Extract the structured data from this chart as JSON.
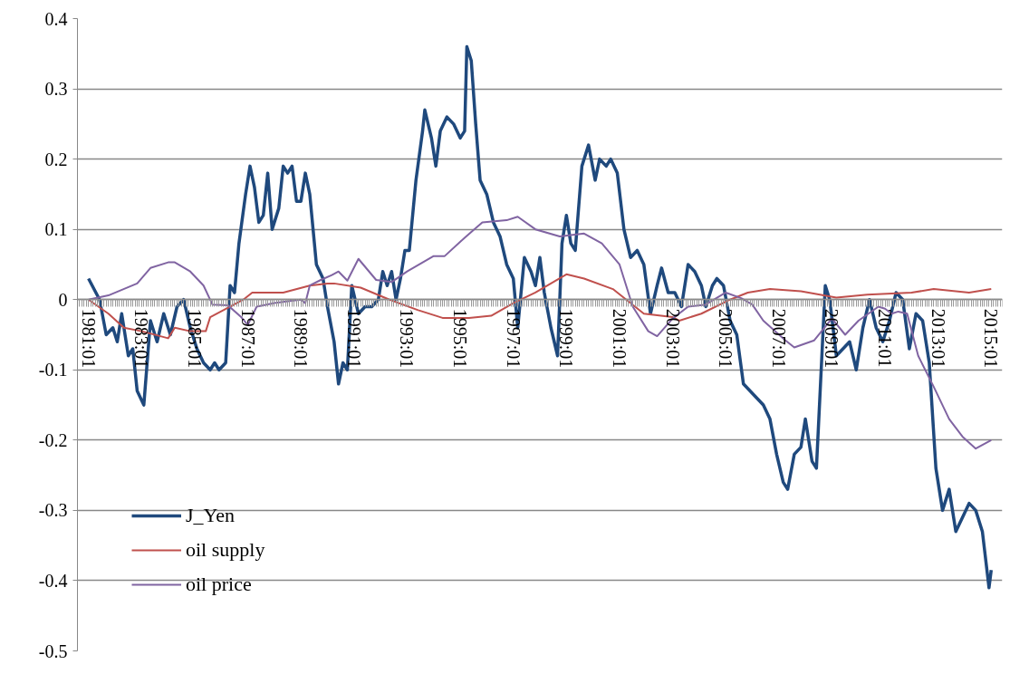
{
  "chart_data": {
    "type": "line",
    "ylim": [
      -0.5,
      0.4
    ],
    "yticks": [
      -0.5,
      -0.4,
      -0.3,
      -0.2,
      -0.1,
      0,
      0.1,
      0.2,
      0.3,
      0.4
    ],
    "xlim": [
      "1980-08",
      "2015-06"
    ],
    "xticks": [
      {
        "value": "1981-01",
        "label": "1981:01"
      },
      {
        "value": "1983-01",
        "label": "1983:01"
      },
      {
        "value": "1985-01",
        "label": "1985:01"
      },
      {
        "value": "1987-01",
        "label": "1987:01"
      },
      {
        "value": "1989-01",
        "label": "1989:01"
      },
      {
        "value": "1991-01",
        "label": "1991:01"
      },
      {
        "value": "1993-01",
        "label": "1993:01"
      },
      {
        "value": "1995-01",
        "label": "1995:01"
      },
      {
        "value": "1997-01",
        "label": "1997:01"
      },
      {
        "value": "1999-01",
        "label": "1999:01"
      },
      {
        "value": "2001-01",
        "label": "2001:01"
      },
      {
        "value": "2003-01",
        "label": "2003:01"
      },
      {
        "value": "2005-01",
        "label": "2005:01"
      },
      {
        "value": "2007-01",
        "label": "2007:01"
      },
      {
        "value": "2009-01",
        "label": "2009:01"
      },
      {
        "value": "2011-01",
        "label": "2011:01"
      },
      {
        "value": "2013-01",
        "label": "2013:01"
      },
      {
        "value": "2015-01",
        "label": "2015:01"
      }
    ],
    "grid": "y",
    "legend": "bottom left",
    "marker": "none",
    "line_style": "solid",
    "series": [
      {
        "name": "J_Yen",
        "color": "#1f497d",
        "x": [
          "1981-01",
          "1981-06",
          "1981-09",
          "1981-12",
          "1982-02",
          "1982-04",
          "1982-07",
          "1982-09",
          "1982-11",
          "1983-02",
          "1983-05",
          "1983-08",
          "1983-11",
          "1984-02",
          "1984-05",
          "1984-08",
          "1984-11",
          "1985-02",
          "1985-05",
          "1985-08",
          "1985-10",
          "1985-12",
          "1986-03",
          "1986-05",
          "1986-07",
          "1986-09",
          "1986-12",
          "1987-02",
          "1987-04",
          "1987-06",
          "1987-08",
          "1987-10",
          "1987-12",
          "1988-03",
          "1988-05",
          "1988-07",
          "1988-09",
          "1988-11",
          "1989-01",
          "1989-03",
          "1989-05",
          "1989-08",
          "1989-11",
          "1990-01",
          "1990-04",
          "1990-06",
          "1990-08",
          "1990-10",
          "1990-12",
          "1991-03",
          "1991-06",
          "1991-09",
          "1991-12",
          "1992-02",
          "1992-04",
          "1992-06",
          "1992-08",
          "1992-10",
          "1992-12",
          "1993-02",
          "1993-05",
          "1993-08",
          "1993-09",
          "1993-12",
          "1994-02",
          "1994-04",
          "1994-07",
          "1994-10",
          "1995-01",
          "1995-03",
          "1995-04",
          "1995-06",
          "1995-08",
          "1995-10",
          "1996-01",
          "1996-04",
          "1996-07",
          "1996-10",
          "1997-01",
          "1997-03",
          "1997-06",
          "1997-09",
          "1997-11",
          "1998-01",
          "1998-03",
          "1998-06",
          "1998-09",
          "1998-11",
          "1999-01",
          "1999-03",
          "1999-05",
          "1999-08",
          "1999-11",
          "2000-02",
          "2000-04",
          "2000-07",
          "2000-09",
          "2000-12",
          "2001-03",
          "2001-06",
          "2001-09",
          "2001-12",
          "2002-03",
          "2002-06",
          "2002-08",
          "2002-11",
          "2003-02",
          "2003-05",
          "2003-08",
          "2003-11",
          "2004-02",
          "2004-04",
          "2004-07",
          "2004-09",
          "2004-12",
          "2005-03",
          "2005-06",
          "2005-09",
          "2005-12",
          "2006-03",
          "2006-06",
          "2006-09",
          "2006-12",
          "2007-03",
          "2007-05",
          "2007-08",
          "2007-11",
          "2008-01",
          "2008-04",
          "2008-06",
          "2008-10",
          "2008-12",
          "2009-03",
          "2009-06",
          "2009-09",
          "2009-12",
          "2010-03",
          "2010-06",
          "2010-09",
          "2010-12",
          "2011-03",
          "2011-06",
          "2011-09",
          "2011-12",
          "2012-03",
          "2012-06",
          "2012-09",
          "2012-12",
          "2013-03",
          "2013-06",
          "2013-09",
          "2013-12",
          "2014-03",
          "2014-06",
          "2014-09",
          "2014-12",
          "2015-01"
        ],
        "values": [
          0.03,
          0.0,
          -0.05,
          -0.04,
          -0.06,
          -0.02,
          -0.08,
          -0.07,
          -0.13,
          -0.15,
          -0.03,
          -0.06,
          -0.02,
          -0.05,
          -0.01,
          0.0,
          -0.04,
          -0.07,
          -0.09,
          -0.1,
          -0.09,
          -0.1,
          -0.09,
          0.02,
          0.01,
          0.08,
          0.15,
          0.19,
          0.16,
          0.11,
          0.12,
          0.18,
          0.1,
          0.13,
          0.19,
          0.18,
          0.19,
          0.14,
          0.14,
          0.18,
          0.15,
          0.05,
          0.03,
          -0.01,
          -0.06,
          -0.12,
          -0.09,
          -0.1,
          0.02,
          -0.02,
          -0.01,
          -0.01,
          0.0,
          0.04,
          0.02,
          0.04,
          0.0,
          0.03,
          0.07,
          0.07,
          0.17,
          0.24,
          0.27,
          0.23,
          0.19,
          0.24,
          0.26,
          0.25,
          0.23,
          0.24,
          0.36,
          0.34,
          0.25,
          0.17,
          0.15,
          0.11,
          0.09,
          0.05,
          0.03,
          -0.04,
          0.06,
          0.04,
          0.02,
          0.06,
          0.01,
          -0.04,
          -0.08,
          0.08,
          0.12,
          0.08,
          0.07,
          0.19,
          0.22,
          0.17,
          0.2,
          0.19,
          0.2,
          0.18,
          0.1,
          0.06,
          0.07,
          0.05,
          -0.02,
          0.02,
          0.045,
          0.01,
          0.01,
          -0.01,
          0.05,
          0.04,
          0.02,
          -0.01,
          0.02,
          0.03,
          0.02,
          -0.03,
          -0.05,
          -0.12,
          -0.13,
          -0.14,
          -0.15,
          -0.17,
          -0.22,
          -0.26,
          -0.27,
          -0.22,
          -0.21,
          -0.17,
          -0.23,
          -0.24,
          0.02,
          0.0,
          -0.08,
          -0.07,
          -0.06,
          -0.1,
          -0.04,
          0.0,
          -0.04,
          -0.06,
          -0.03,
          0.01,
          0.0,
          -0.07,
          -0.02,
          -0.03,
          -0.09,
          -0.24,
          -0.3,
          -0.27,
          -0.33,
          -0.31,
          -0.29,
          -0.3,
          -0.33,
          -0.41,
          -0.385
        ]
      },
      {
        "name": "oil supply",
        "color": "#c0504d",
        "x": [
          "1981-01",
          "1981-10",
          "1982-05",
          "1983-01",
          "1984-01",
          "1984-04",
          "1984-11",
          "1985-06",
          "1985-08",
          "1986-11",
          "1987-03",
          "1988-05",
          "1989-05",
          "1990-01",
          "1990-04",
          "1991-04",
          "1992-05",
          "1993-06",
          "1994-05",
          "1995-05",
          "1996-03",
          "1997-01",
          "1997-11",
          "1999-01",
          "1999-09",
          "2000-10",
          "2001-12",
          "2003-01",
          "2003-04",
          "2004-02",
          "2005-03",
          "2005-11",
          "2006-09",
          "2007-11",
          "2009-03",
          "2010-05",
          "2012-01",
          "2012-11",
          "2014-03",
          "2015-01"
        ],
        "values": [
          0.0,
          -0.02,
          -0.04,
          -0.045,
          -0.055,
          -0.04,
          -0.045,
          -0.045,
          -0.025,
          0.0,
          0.01,
          0.01,
          0.02,
          0.023,
          0.023,
          0.017,
          0.0,
          -0.015,
          -0.026,
          -0.026,
          -0.023,
          -0.005,
          0.01,
          0.036,
          0.03,
          0.015,
          -0.02,
          -0.025,
          -0.03,
          -0.02,
          0.0,
          0.01,
          0.015,
          0.012,
          0.003,
          0.007,
          0.01,
          0.015,
          0.01,
          0.015
        ]
      },
      {
        "name": "oil price",
        "color": "#8064a2",
        "x": [
          "1981-01",
          "1981-10",
          "1982-11",
          "1983-05",
          "1984-01",
          "1984-04",
          "1984-11",
          "1985-05",
          "1985-09",
          "1986-04",
          "1986-10",
          "1987-01",
          "1987-05",
          "1988-01",
          "1989-01",
          "1989-03",
          "1989-05",
          "1989-10",
          "1990-03",
          "1990-06",
          "1990-10",
          "1991-03",
          "1991-11",
          "1992-06",
          "1993-01",
          "1994-01",
          "1994-06",
          "1995-03",
          "1995-11",
          "1996-10",
          "1997-03",
          "1997-11",
          "1998-10",
          "1999-09",
          "2000-05",
          "2001-01",
          "2001-07",
          "2002-02",
          "2002-06",
          "2003-01",
          "2003-08",
          "2004-04",
          "2005-01",
          "2005-08",
          "2006-01",
          "2006-06",
          "2007-04",
          "2007-08",
          "2008-05",
          "2009-01",
          "2009-07",
          "2010-01",
          "2010-10",
          "2011-01",
          "2011-04",
          "2011-07",
          "2011-11",
          "2012-04",
          "2012-11",
          "2013-06",
          "2013-12",
          "2014-06",
          "2015-01"
        ],
        "values": [
          0.0,
          0.006,
          0.023,
          0.045,
          0.053,
          0.053,
          0.04,
          0.02,
          -0.007,
          -0.008,
          -0.025,
          -0.036,
          -0.01,
          -0.005,
          0.0,
          -0.005,
          0.02,
          0.028,
          0.035,
          0.04,
          0.027,
          0.058,
          0.028,
          0.025,
          0.04,
          0.062,
          0.062,
          0.088,
          0.11,
          0.113,
          0.118,
          0.1,
          0.09,
          0.094,
          0.08,
          0.05,
          -0.01,
          -0.045,
          -0.052,
          -0.027,
          -0.01,
          -0.007,
          0.01,
          0.002,
          -0.007,
          -0.03,
          -0.058,
          -0.068,
          -0.058,
          -0.027,
          -0.05,
          -0.03,
          -0.01,
          -0.013,
          -0.02,
          -0.017,
          -0.02,
          -0.08,
          -0.124,
          -0.17,
          -0.195,
          -0.212,
          -0.2
        ]
      }
    ]
  }
}
